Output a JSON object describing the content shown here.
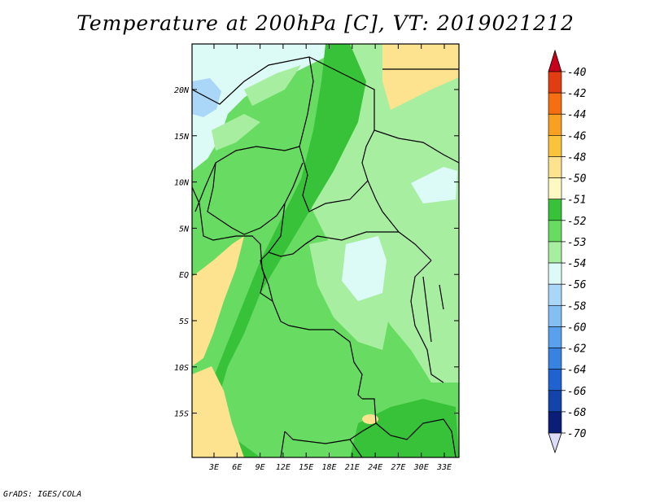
{
  "title": "Temperature at 200hPa [C], VT: 2019021212",
  "footer": "GrADS: IGES/COLA",
  "map": {
    "lat_labels": [
      "20N",
      "15N",
      "10N",
      "5N",
      "EQ",
      "5S",
      "10S",
      "15S"
    ],
    "lon_labels": [
      "3E",
      "6E",
      "9E",
      "12E",
      "15E",
      "18E",
      "21E",
      "24E",
      "27E",
      "30E",
      "33E"
    ]
  },
  "colorbar": {
    "levels": [
      {
        "label": "-40",
        "color": "#c8001c"
      },
      {
        "label": "-42",
        "color": "#e23c12"
      },
      {
        "label": "-44",
        "color": "#f56e12"
      },
      {
        "label": "-46",
        "color": "#f7a022"
      },
      {
        "label": "-48",
        "color": "#fac33c"
      },
      {
        "label": "-50",
        "color": "#fde28f"
      },
      {
        "label": "-51",
        "color": "#fef8c3"
      },
      {
        "label": "-52",
        "color": "#38c23a"
      },
      {
        "label": "-53",
        "color": "#68dc62"
      },
      {
        "label": "-54",
        "color": "#a8eea0"
      },
      {
        "label": "-56",
        "color": "#dcfaf6"
      },
      {
        "label": "-58",
        "color": "#aad6f8"
      },
      {
        "label": "-60",
        "color": "#84bef3"
      },
      {
        "label": "-62",
        "color": "#5aa0ec"
      },
      {
        "label": "-64",
        "color": "#3882e0"
      },
      {
        "label": "-66",
        "color": "#2062d0"
      },
      {
        "label": "-68",
        "color": "#1444aa"
      },
      {
        "label": "-70",
        "color": "#0a1e78"
      }
    ],
    "below_color": "#dcdcf8"
  },
  "colors": {
    "field_base": "#68dc62",
    "field_warm": "#fde28f",
    "field_darkgreen": "#38c23a",
    "field_lightgreen": "#a8eea0",
    "field_cyan": "#dcfaf6",
    "field_blue": "#aad6f8"
  }
}
